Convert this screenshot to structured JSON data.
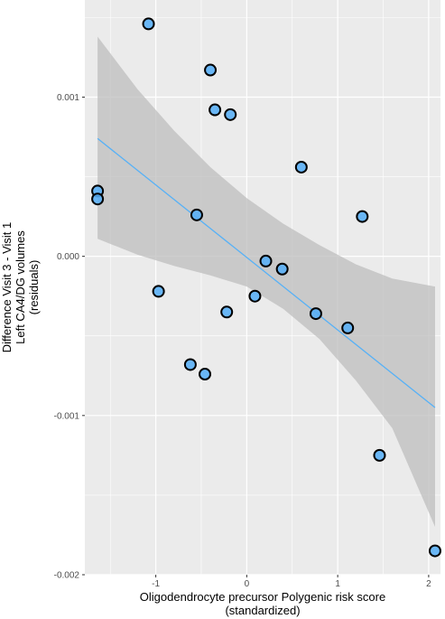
{
  "chart_data": {
    "type": "scatter",
    "title": "",
    "xlabel": [
      "Oligodendrocyte precursor Polygenic risk score",
      "(standardized)"
    ],
    "ylabel": [
      "Difference Visit 3 - Visit 1",
      "Left CA4/DG volumes",
      "(residuals)"
    ],
    "xlim": [
      -1.78,
      2.13
    ],
    "ylim": [
      -0.002,
      0.00161
    ],
    "x_ticks": [
      -1,
      0,
      1,
      2
    ],
    "x_tick_labels": [
      "-1",
      "0",
      "1",
      "2"
    ],
    "y_ticks": [
      -0.002,
      -0.001,
      0.0,
      0.001
    ],
    "y_tick_labels": [
      "-0.002",
      "-0.001",
      "0.000",
      "0.001"
    ],
    "grid": true,
    "background": "#ebebeb",
    "grid_color": "#ffffff",
    "point_color": "#56aef6",
    "point_edge_color": "#000000",
    "line_color": "#56b1f7",
    "ribbon_color": "#bdbdbd",
    "points": [
      {
        "x": -1.08,
        "y": 0.00146
      },
      {
        "x": -0.4,
        "y": 0.00117
      },
      {
        "x": -0.35,
        "y": 0.00092
      },
      {
        "x": -0.18,
        "y": 0.00089
      },
      {
        "x": 0.6,
        "y": 0.00056
      },
      {
        "x": -1.64,
        "y": 0.00041
      },
      {
        "x": -1.64,
        "y": 0.00036
      },
      {
        "x": -0.55,
        "y": 0.00026
      },
      {
        "x": 1.27,
        "y": 0.00025
      },
      {
        "x": 0.21,
        "y": -3e-05
      },
      {
        "x": 0.39,
        "y": -8e-05
      },
      {
        "x": -0.97,
        "y": -0.00022
      },
      {
        "x": 0.09,
        "y": -0.00025
      },
      {
        "x": -0.22,
        "y": -0.00035
      },
      {
        "x": 0.76,
        "y": -0.00036
      },
      {
        "x": 1.11,
        "y": -0.00045
      },
      {
        "x": -0.62,
        "y": -0.00068
      },
      {
        "x": -0.46,
        "y": -0.00074
      },
      {
        "x": 1.46,
        "y": -0.00125
      },
      {
        "x": 2.07,
        "y": -0.00185
      }
    ],
    "fit_line": {
      "x": [
        -1.64,
        2.07
      ],
      "y": [
        0.00074,
        -0.00095
      ]
    },
    "confidence_band": {
      "x": [
        -1.64,
        -1.2,
        -0.8,
        -0.4,
        0.0,
        0.4,
        0.8,
        1.2,
        1.6,
        2.07
      ],
      "upper": [
        0.00138,
        0.00105,
        0.00079,
        0.00056,
        0.000365,
        0.000205,
        7e-05,
        -5e-05,
        -0.00014,
        -0.00019
      ],
      "lower": [
        0.00011,
        1e-05,
        -6e-05,
        -0.00012,
        -0.00019,
        -0.00033,
        -0.00052,
        -0.00078,
        -0.00108,
        -0.0017
      ]
    }
  }
}
